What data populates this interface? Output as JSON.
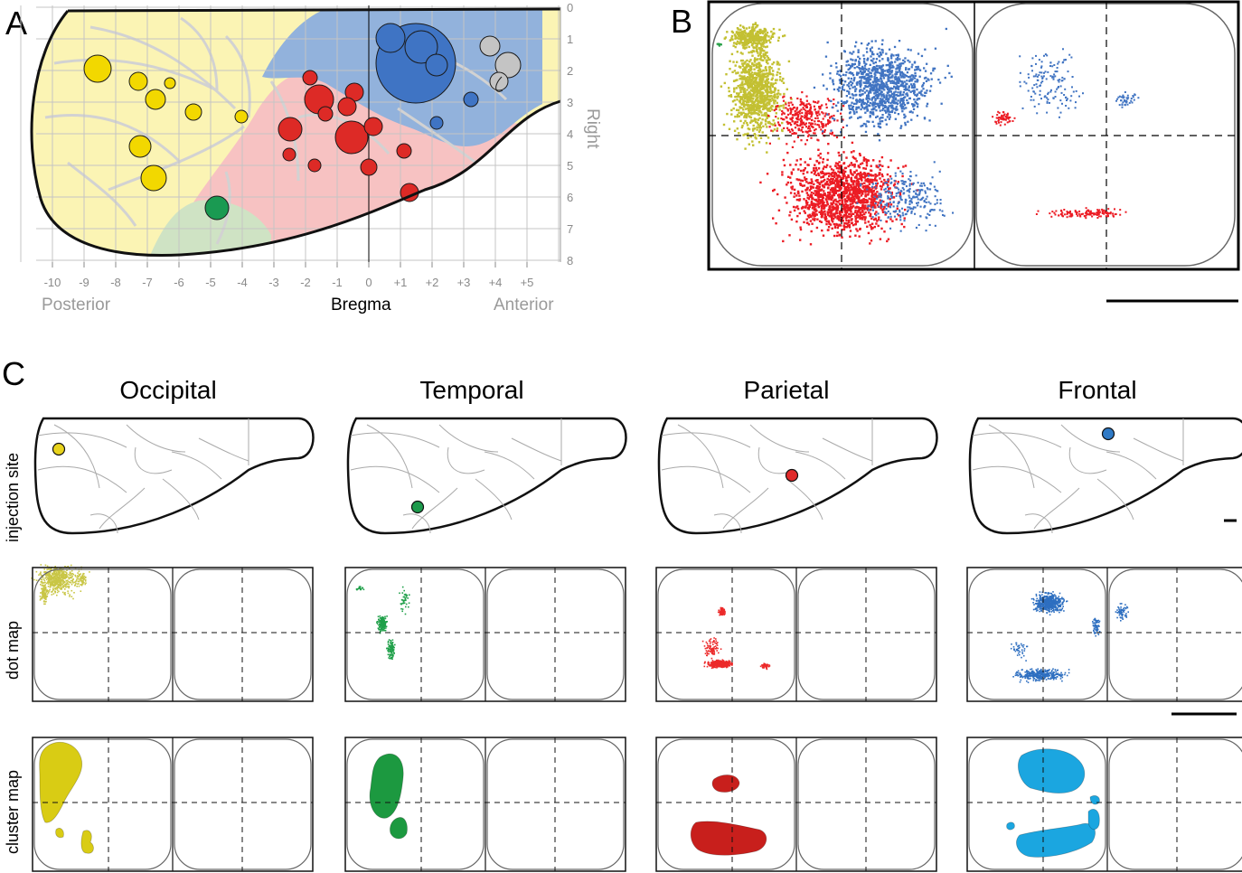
{
  "panels": {
    "A": {
      "letter": "A",
      "x_ticks": [
        "-10",
        "-9",
        "-8",
        "-7",
        "-6",
        "-5",
        "-4",
        "-3",
        "-2",
        "-1",
        "0",
        "+1",
        "+2",
        "+3",
        "+4",
        "+5"
      ],
      "y_ticks": [
        "0",
        "1",
        "2",
        "3",
        "4",
        "5",
        "6",
        "7",
        "8"
      ],
      "x_label_left": "Posterior",
      "x_label_center": "Bregma",
      "x_label_right": "Anterior",
      "y_label": "Right",
      "colors": {
        "occipital_region": "#fbf4b4",
        "temporal_region": "#cfe3c4",
        "parietal_region": "#f7c2c2",
        "frontal_region": "#92b2dc",
        "yellow": "#f2d800",
        "red": "#dd2a26",
        "blue": "#3f74c4",
        "green": "#1a9a52",
        "gray": "#c4c4c4"
      }
    },
    "B": {
      "letter": "B",
      "colors": {
        "yellow": "#c3c032",
        "red": "#ec1c24",
        "blue": "#4174c2",
        "green": "#2aa14a"
      }
    },
    "C": {
      "letter": "C",
      "columns": [
        {
          "title": "Occipital",
          "color": "#e8d31c",
          "dot_color": "#c9c646",
          "cluster_color": "#d9cc14"
        },
        {
          "title": "Temporal",
          "color": "#1d9a4c",
          "dot_color": "#20a04a",
          "cluster_color": "#1c9940"
        },
        {
          "title": "Parietal",
          "color": "#e02a2a",
          "dot_color": "#ec2a2a",
          "cluster_color": "#c81f1c"
        },
        {
          "title": "Frontal",
          "color": "#2f7ac6",
          "dot_color": "#2e6fc0",
          "cluster_color": "#1ba6e0"
        }
      ],
      "row_labels": [
        "injection site",
        "dot map",
        "cluster map"
      ]
    }
  }
}
